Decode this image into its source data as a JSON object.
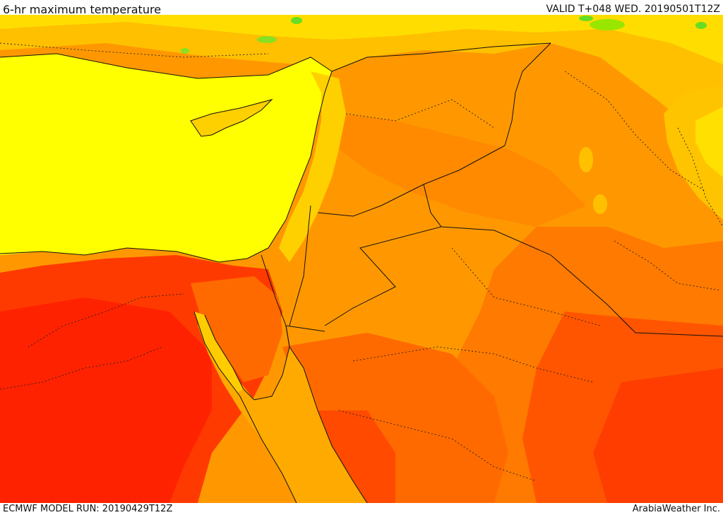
{
  "header": {
    "title": "6-hr maximum temperature",
    "valid": "VALID T+048 WED. 20190501T12Z"
  },
  "footer": {
    "model_run": "ECMWF MODEL RUN: 20190429T12Z",
    "credit": "ArabiaWeather Inc."
  },
  "colors": {
    "sea_mediterranean": "#ffff00",
    "cool_land": "#ffd700",
    "mild": "#ffb300",
    "warm": "#ff9800",
    "hot": "#ff6d00",
    "very_hot": "#ff3c00",
    "extreme": "#ff1f00",
    "red_sea": "#ffaa00",
    "green_high": "#66dd22"
  }
}
